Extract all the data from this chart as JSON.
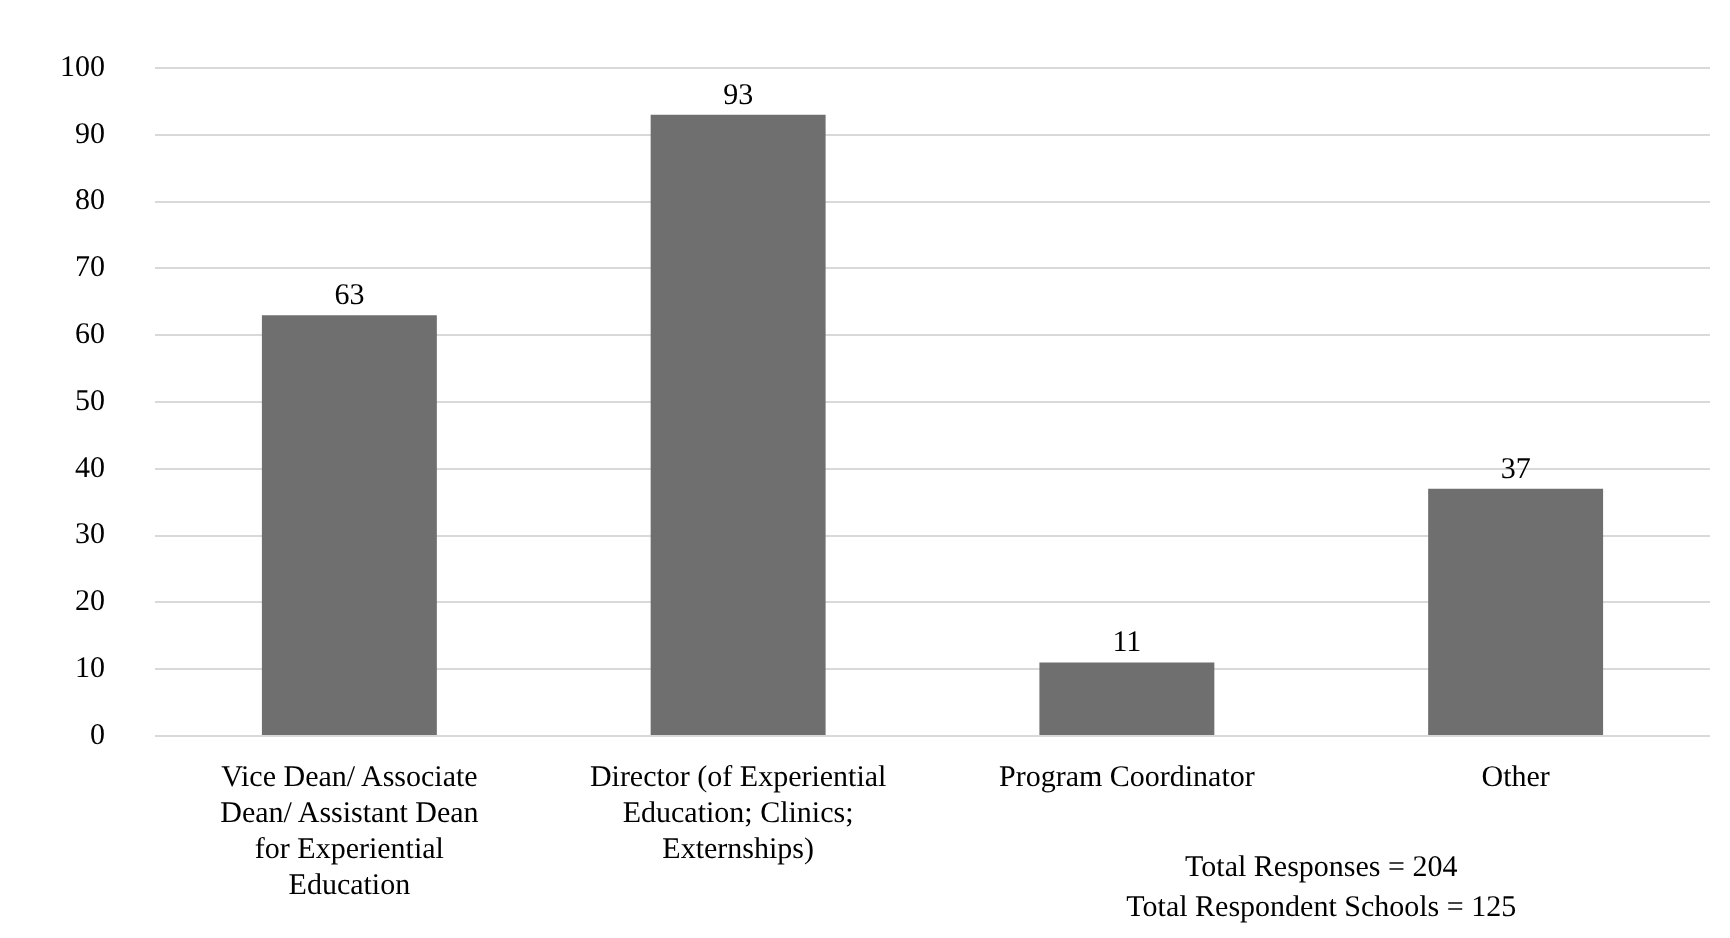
{
  "chart_data": {
    "type": "bar",
    "categories": [
      "Vice Dean/ Associate Dean/ Assistant Dean for Experiential Education",
      "Director (of Experiential Education; Clinics; Externships)",
      "Program Coordinator",
      "Other"
    ],
    "values": [
      63,
      93,
      11,
      37
    ],
    "color": "#6f6f6f",
    "ylim": [
      0,
      100
    ],
    "yticks": [
      0,
      10,
      20,
      30,
      40,
      50,
      60,
      70,
      80,
      90,
      100
    ],
    "grid": "y",
    "legend": false,
    "data_labels": true,
    "annotations": [
      "Total Responses = 204",
      "Total Respondent Schools = 125"
    ]
  }
}
